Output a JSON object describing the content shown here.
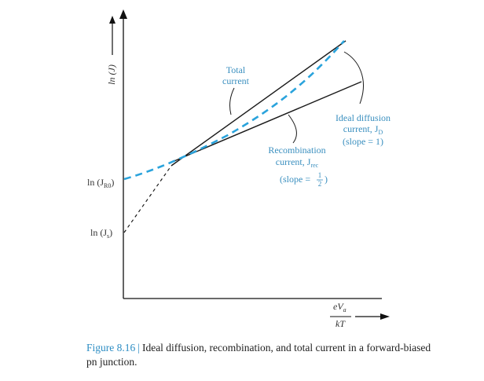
{
  "axes": {
    "y_label": "ln (J)",
    "x_label_numerator_e": "eV",
    "x_label_numerator_sub": "a",
    "x_label_denominator": "kT"
  },
  "ticks": {
    "jr0": {
      "prefix": "ln (J",
      "sub": "R0",
      "suffix": ")"
    },
    "js": {
      "prefix": "ln (J",
      "sub": "s",
      "suffix": ")"
    }
  },
  "labels": {
    "total": {
      "line1": "Total",
      "line2": "current"
    },
    "ideal": {
      "line1": "Ideal diffusion",
      "line2_prefix": "current, J",
      "line2_sub": "D",
      "line3": "(slope = 1)"
    },
    "recomb": {
      "line1": "Recombination",
      "line2_prefix": "current, J",
      "line2_sub": "rec",
      "line3_prefix": "(slope = ",
      "frac_num": "1",
      "frac_den": "2",
      "line3_suffix": ")"
    }
  },
  "caption": {
    "figure_label": "Figure 8.16",
    "separator": "|",
    "text": "Ideal diffusion, recombination, and total current in a forward-biased pn junction."
  },
  "colors": {
    "axis": "#111111",
    "lines": "#1a1a1a",
    "total_dashed": "#2aa3dc",
    "blue_text": "#3a8fbf"
  }
}
